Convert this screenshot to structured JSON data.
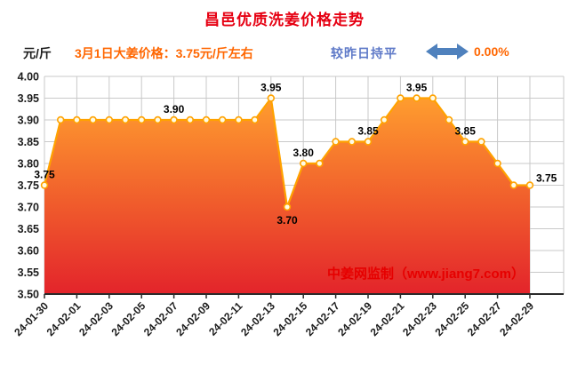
{
  "title": "昌邑优质洗姜价格走势",
  "header": {
    "unit_label": "元/斤",
    "subtitle": "3月1日大姜价格：3.75元/斤左右",
    "comparison_label": "较昨日持平",
    "comparison_value": "0.00%",
    "arrow_icon": "left-right-arrow"
  },
  "watermark": "中姜网监制（www.jiang7.com）",
  "colors": {
    "title": "#e60012",
    "unit_label": "#1c1c1c",
    "subtitle": "#ff6600",
    "comparison_label": "#5f7ac8",
    "comparison_value": "#ff6600",
    "arrow": "#4f81bd",
    "area_top": "#ff9d2e",
    "area_bottom": "#e3242b",
    "line": "#ffa200",
    "marker_fill": "#fffbe6",
    "grid": "#c9c9c9",
    "axis_text": "#1c1c1c",
    "point_label": "#000000",
    "watermark": "#e60000"
  },
  "chart_data": {
    "type": "area",
    "title": "昌邑优质洗姜价格走势",
    "xlabel": "",
    "ylabel": "元/斤",
    "ylim": [
      3.5,
      4.0
    ],
    "ytick_step": 0.05,
    "grid": true,
    "legend": "none",
    "x_tick_labels": [
      "24-01-30",
      "24-02-01",
      "24-02-03",
      "24-02-05",
      "24-02-07",
      "24-02-09",
      "24-02-11",
      "24-02-13",
      "24-02-15",
      "24-02-17",
      "24-02-19",
      "24-02-21",
      "24-02-23",
      "24-02-25",
      "24-02-27",
      "24-02-29"
    ],
    "dates": [
      "24-01-30",
      "24-01-31",
      "24-02-01",
      "24-02-02",
      "24-02-03",
      "24-02-04",
      "24-02-05",
      "24-02-06",
      "24-02-07",
      "24-02-08",
      "24-02-09",
      "24-02-10",
      "24-02-11",
      "24-02-12",
      "24-02-13",
      "24-02-14",
      "24-02-15",
      "24-02-16",
      "24-02-17",
      "24-02-18",
      "24-02-19",
      "24-02-20",
      "24-02-21",
      "24-02-22",
      "24-02-23",
      "24-02-24",
      "24-02-25",
      "24-02-26",
      "24-02-27",
      "24-02-28",
      "24-02-29"
    ],
    "values": [
      3.75,
      3.9,
      3.9,
      3.9,
      3.9,
      3.9,
      3.9,
      3.9,
      3.9,
      3.9,
      3.9,
      3.9,
      3.9,
      3.9,
      3.95,
      3.7,
      3.8,
      3.8,
      3.85,
      3.85,
      3.85,
      3.9,
      3.95,
      3.95,
      3.95,
      3.9,
      3.85,
      3.85,
      3.8,
      3.75,
      3.75
    ],
    "point_labels": [
      {
        "index": 0,
        "text": "3.75",
        "position": "above"
      },
      {
        "index": 8,
        "text": "3.90",
        "position": "above"
      },
      {
        "index": 14,
        "text": "3.95",
        "position": "above"
      },
      {
        "index": 15,
        "text": "3.70",
        "position": "below"
      },
      {
        "index": 16,
        "text": "3.80",
        "position": "above"
      },
      {
        "index": 20,
        "text": "3.85",
        "position": "above"
      },
      {
        "index": 23,
        "text": "3.95",
        "position": "above"
      },
      {
        "index": 26,
        "text": "3.85",
        "position": "above"
      },
      {
        "index": 30,
        "text": "3.75",
        "position": "right"
      }
    ]
  }
}
